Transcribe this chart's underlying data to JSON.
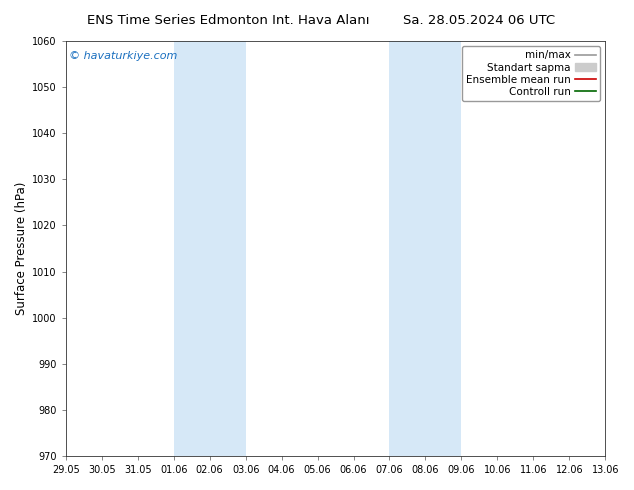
{
  "title_left": "ENS Time Series Edmonton Int. Hava Alanı",
  "title_right": "Sa. 28.05.2024 06 UTC",
  "ylabel": "Surface Pressure (hPa)",
  "ylim": [
    970,
    1060
  ],
  "yticks": [
    970,
    980,
    990,
    1000,
    1010,
    1020,
    1030,
    1040,
    1050,
    1060
  ],
  "xtick_labels": [
    "29.05",
    "30.05",
    "31.05",
    "01.06",
    "02.06",
    "03.06",
    "04.06",
    "05.06",
    "06.06",
    "07.06",
    "08.06",
    "09.06",
    "10.06",
    "11.06",
    "12.06",
    "13.06"
  ],
  "shaded_regions": [
    {
      "xstart": 3,
      "xend": 5
    },
    {
      "xstart": 9,
      "xend": 11
    }
  ],
  "shaded_color": "#d6e8f7",
  "background_color": "#ffffff",
  "watermark": "© havaturkiye.com",
  "watermark_color": "#1a6fbf",
  "legend_entries": [
    {
      "label": "min/max",
      "color": "#999999",
      "lw": 1.2,
      "style": "-"
    },
    {
      "label": "Standart sapma",
      "color": "#cccccc",
      "lw": 7,
      "style": "-"
    },
    {
      "label": "Ensemble mean run",
      "color": "#cc0000",
      "lw": 1.2,
      "style": "-"
    },
    {
      "label": "Controll run",
      "color": "#006600",
      "lw": 1.2,
      "style": "-"
    }
  ],
  "title_fontsize": 9.5,
  "tick_fontsize": 7,
  "ylabel_fontsize": 8.5,
  "watermark_fontsize": 8,
  "legend_fontsize": 7.5
}
